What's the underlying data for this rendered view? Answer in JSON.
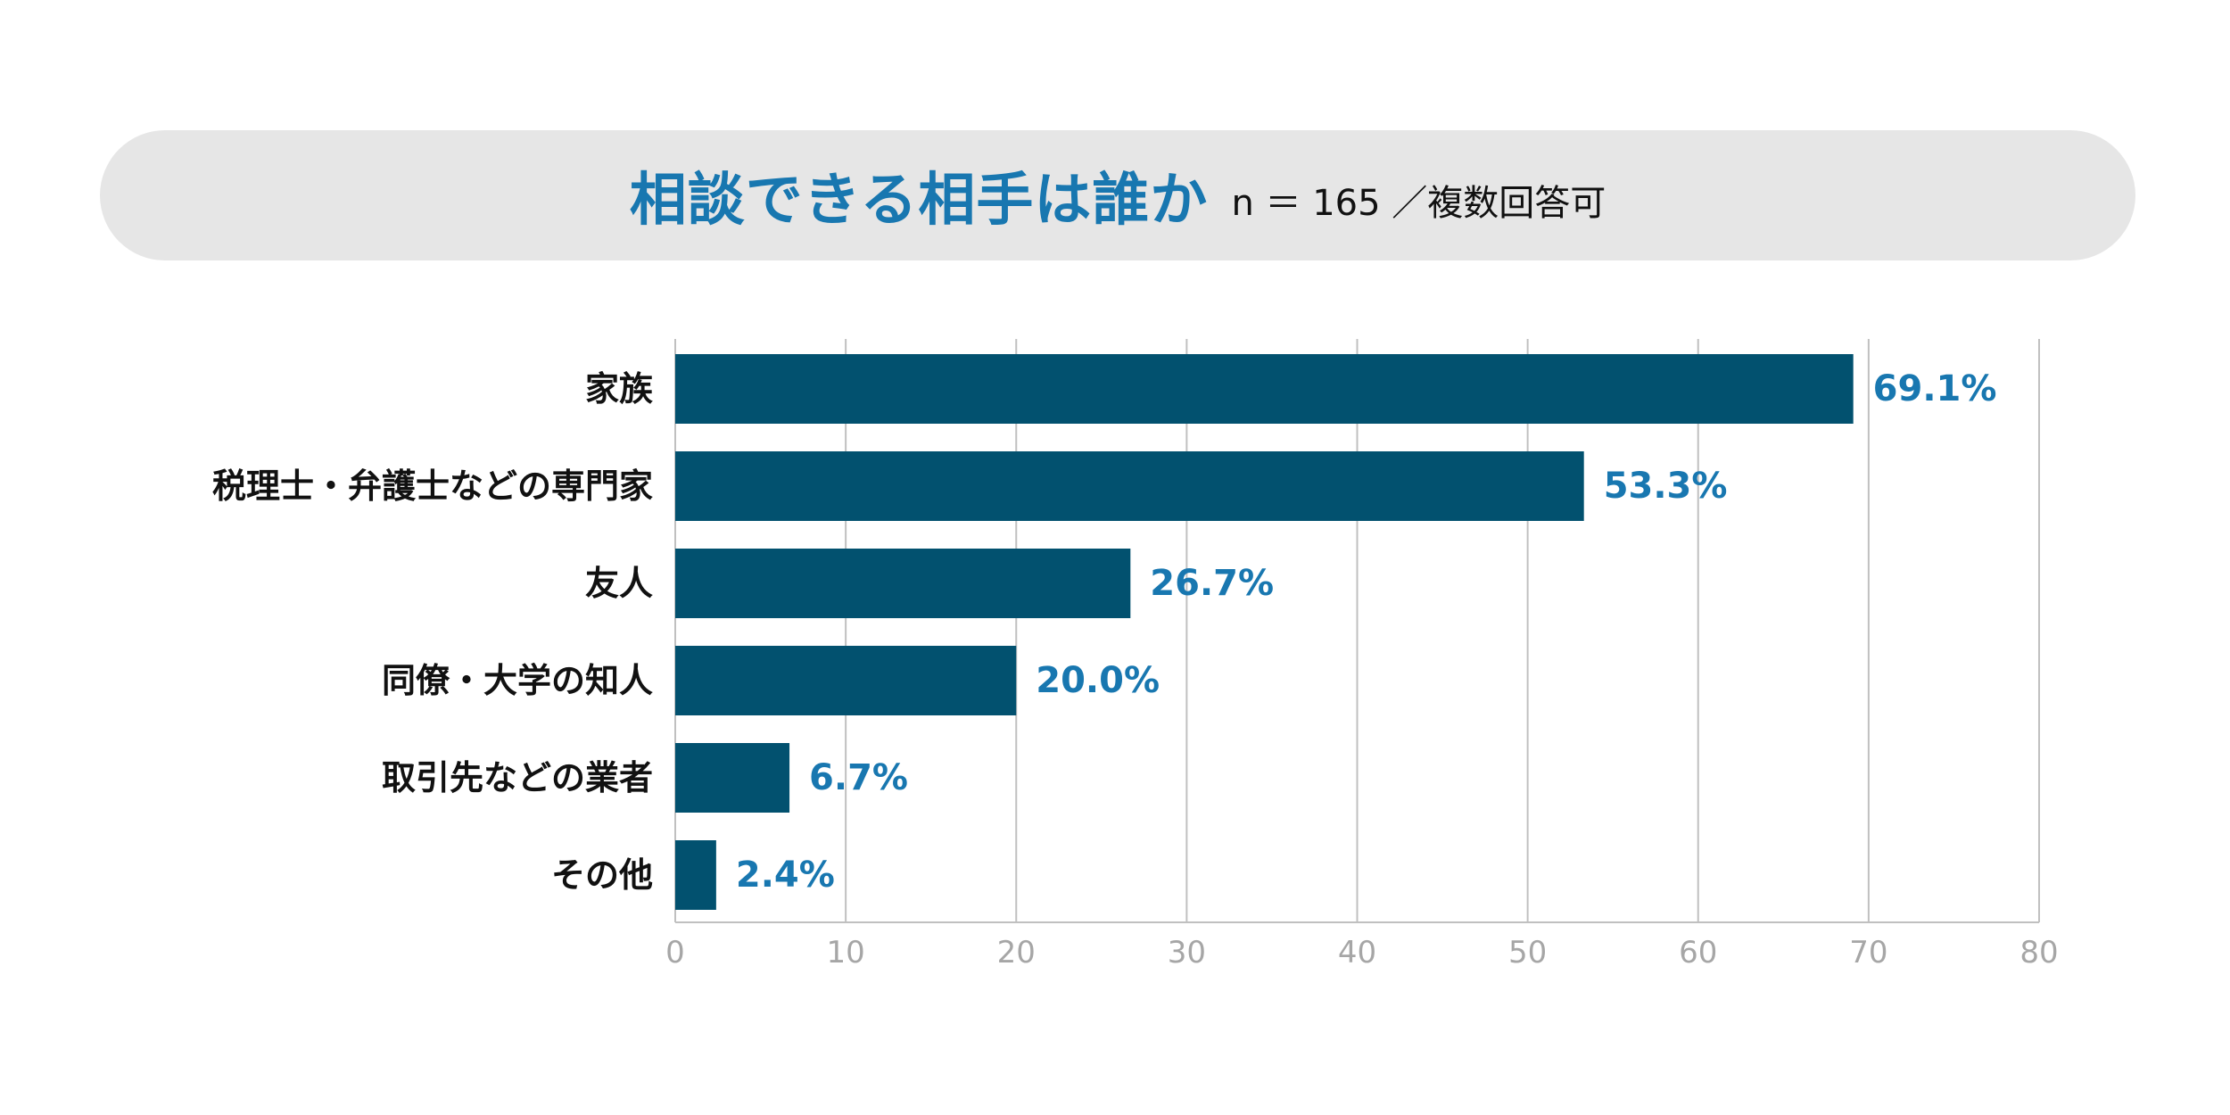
{
  "header": {
    "title": "相談できる相手は誰か",
    "subtitle": "n ＝ 165 ／複数回答可"
  },
  "colors": {
    "bar": "#02516f",
    "value_label": "#1877b0",
    "title": "#1877b0",
    "grid": "#c0c0c0",
    "tick_label": "#a6a6a6",
    "banner": "#e6e6e6"
  },
  "chart_data": {
    "type": "bar",
    "orientation": "horizontal",
    "title": "相談できる相手は誰か",
    "subtitle": "n ＝ 165 ／複数回答可",
    "categories": [
      "家族",
      "税理士・弁護士などの専門家",
      "友人",
      "同僚・大学の知人",
      "取引先などの業者",
      "その他"
    ],
    "values": [
      69.1,
      53.3,
      26.7,
      20.0,
      6.7,
      2.4
    ],
    "value_labels": [
      "69.1%",
      "53.3%",
      "26.7%",
      "20.0%",
      "6.7%",
      "2.4%"
    ],
    "xlim": [
      0,
      80
    ],
    "xticks": [
      0,
      10,
      20,
      30,
      40,
      50,
      60,
      70,
      80
    ],
    "xlabel": "",
    "ylabel": "",
    "grid": true,
    "legend": "none"
  }
}
